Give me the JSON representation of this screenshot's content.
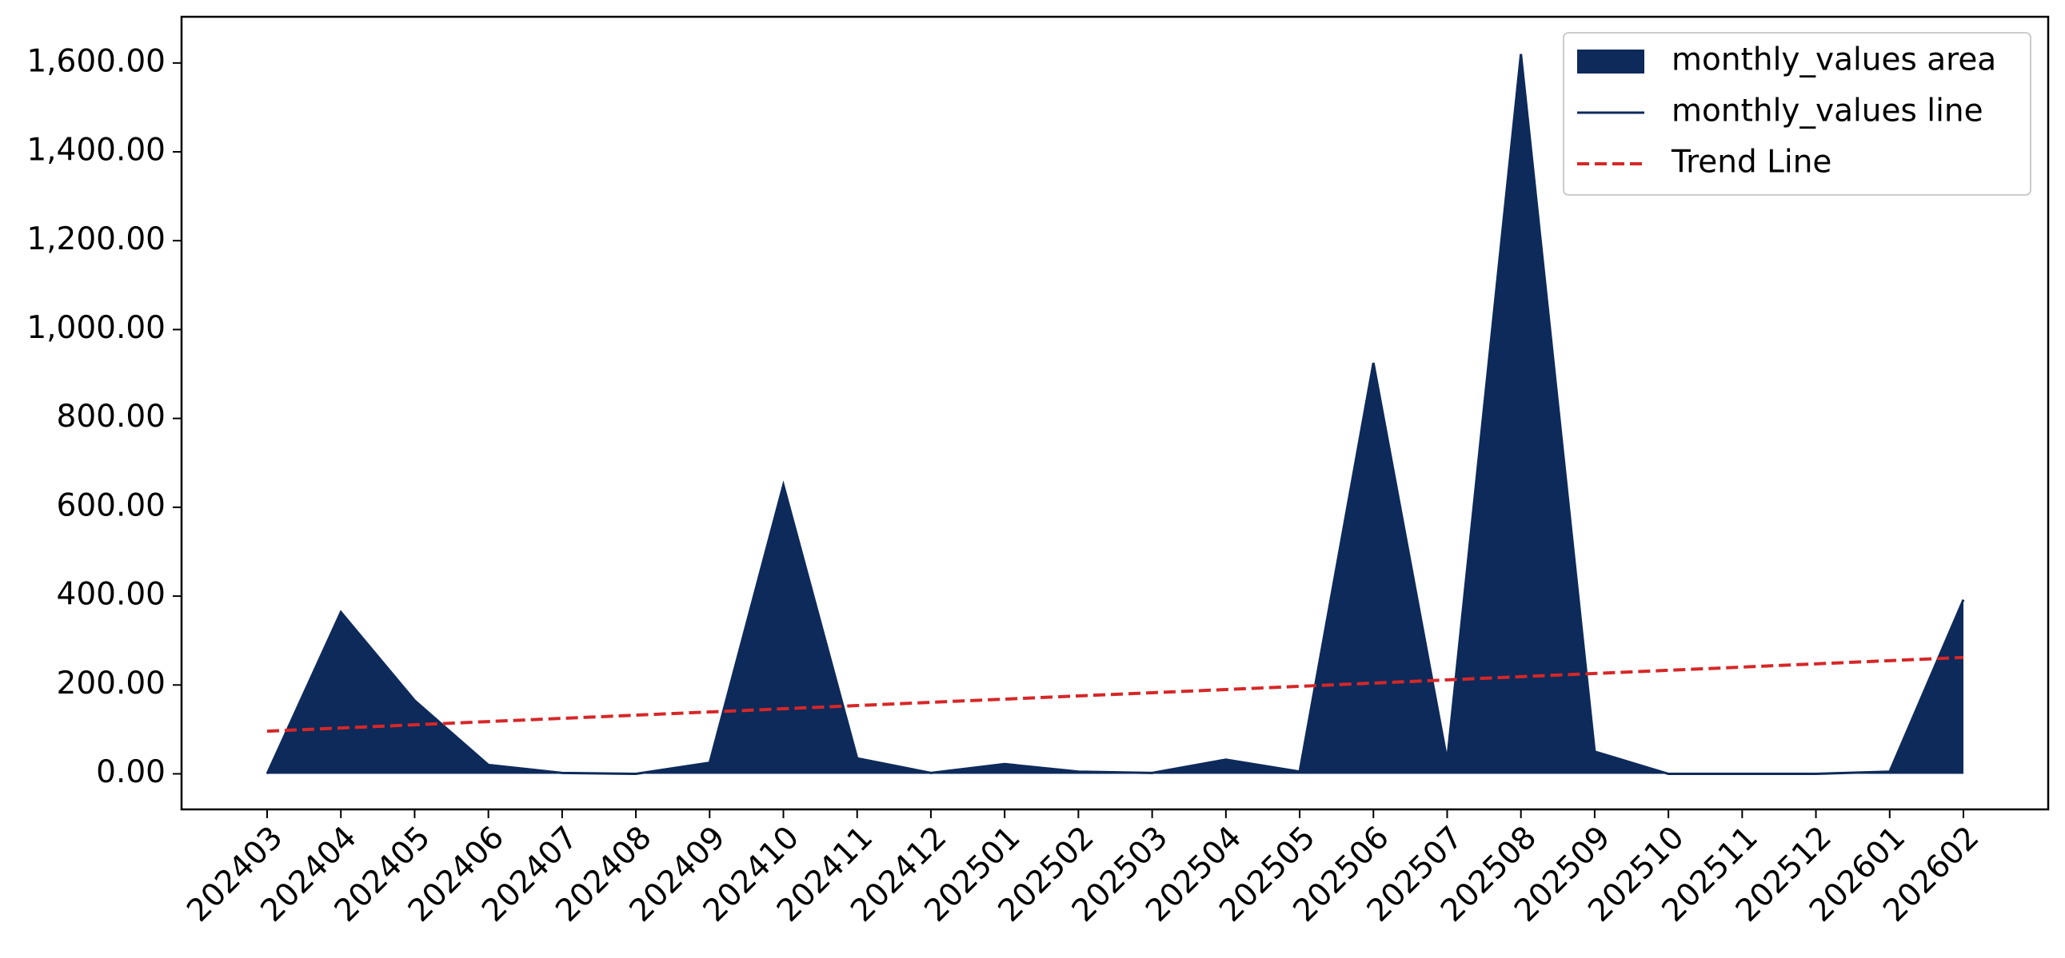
{
  "chart_data": {
    "type": "area",
    "categories": [
      "202403",
      "202404",
      "202405",
      "202406",
      "202407",
      "202408",
      "202409",
      "202410",
      "202411",
      "202412",
      "202501",
      "202502",
      "202503",
      "202504",
      "202505",
      "202506",
      "202507",
      "202508",
      "202509",
      "202510",
      "202511",
      "202512",
      "202601",
      "202602"
    ],
    "series": [
      {
        "name": "monthly_values area",
        "color": "#0d2a5a",
        "style": "area",
        "values": [
          0,
          364,
          165,
          20,
          2,
          0,
          25,
          650,
          35,
          2,
          22,
          5,
          2,
          32,
          5,
          925,
          30,
          1620,
          50,
          0,
          0,
          0,
          5,
          392
        ]
      },
      {
        "name": "monthly_values line",
        "color": "#0d2a5a",
        "style": "line",
        "values": [
          0,
          364,
          165,
          20,
          2,
          0,
          25,
          650,
          35,
          2,
          22,
          5,
          2,
          32,
          5,
          925,
          30,
          1620,
          50,
          0,
          0,
          0,
          5,
          392
        ]
      },
      {
        "name": "Trend Line",
        "color": "#d62728",
        "style": "dashed",
        "values": [
          96,
          103.2,
          110.4,
          117.7,
          124.9,
          132.1,
          139.3,
          146.5,
          153.7,
          161.0,
          168.2,
          175.4,
          182.6,
          189.8,
          197.0,
          204.3,
          211.5,
          218.7,
          225.9,
          233.1,
          240.3,
          247.6,
          254.8,
          262.0
        ]
      }
    ],
    "ylim": [
      -80,
      1704
    ],
    "yticks": [
      {
        "value": 0,
        "label": "0.00"
      },
      {
        "value": 200,
        "label": "200.00"
      },
      {
        "value": 400,
        "label": "400.00"
      },
      {
        "value": 600,
        "label": "600.00"
      },
      {
        "value": 800,
        "label": "800.00"
      },
      {
        "value": 1000,
        "label": "1,000.00"
      },
      {
        "value": 1200,
        "label": "1,200.00"
      },
      {
        "value": 1400,
        "label": "1,400.00"
      },
      {
        "value": 1600,
        "label": "1,600.00"
      }
    ],
    "legend": "upper right",
    "grid": false
  }
}
